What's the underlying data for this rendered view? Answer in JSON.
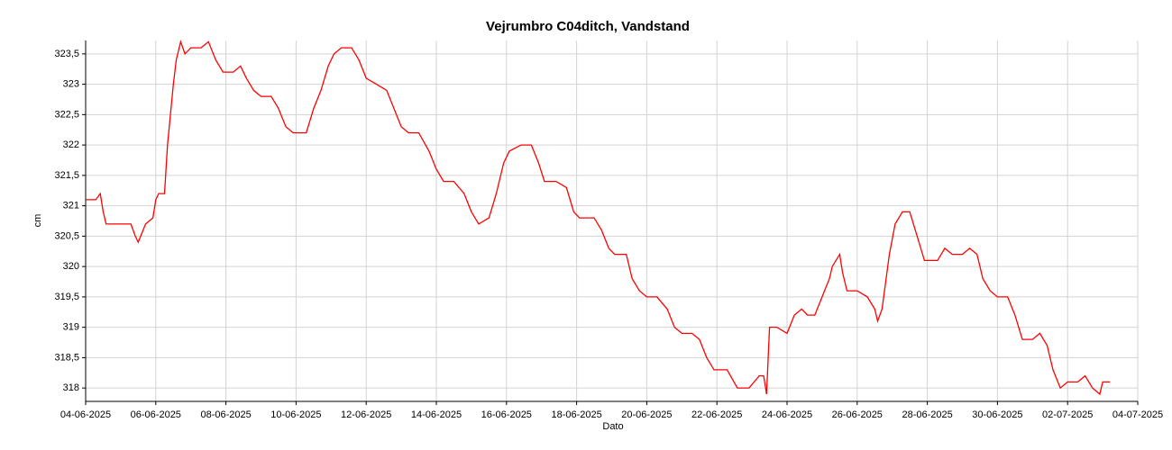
{
  "chart_data": {
    "type": "line",
    "title": "Vejrumbro C04ditch, Vandstand",
    "xlabel": "Dato",
    "ylabel": "cm",
    "color": "#ff0000",
    "grid": true,
    "x": [
      "2025-06-04T00:00",
      "2025-06-04T07:00",
      "2025-06-04T10:00",
      "2025-06-04T12:00",
      "2025-06-04T14:00",
      "2025-06-04T19:00",
      "2025-06-05T00:00",
      "2025-06-05T07:00",
      "2025-06-05T10:00",
      "2025-06-05T12:00",
      "2025-06-05T17:00",
      "2025-06-05T22:00",
      "2025-06-06T00:00",
      "2025-06-06T02:00",
      "2025-06-06T06:00",
      "2025-06-06T08:00",
      "2025-06-06T12:00",
      "2025-06-06T14:00",
      "2025-06-06T17:00",
      "2025-06-06T20:00",
      "2025-06-07T00:00",
      "2025-06-07T07:00",
      "2025-06-07T12:00",
      "2025-06-07T17:00",
      "2025-06-07T22:00",
      "2025-06-08T05:00",
      "2025-06-08T10:00",
      "2025-06-08T14:00",
      "2025-06-08T19:00",
      "2025-06-09T00:00",
      "2025-06-09T07:00",
      "2025-06-09T12:00",
      "2025-06-09T17:00",
      "2025-06-09T22:00",
      "2025-06-10T02:00",
      "2025-06-10T07:00",
      "2025-06-10T12:00",
      "2025-06-10T17:00",
      "2025-06-10T22:00",
      "2025-06-11T02:00",
      "2025-06-11T07:00",
      "2025-06-11T14:00",
      "2025-06-11T19:00",
      "2025-06-12T00:00",
      "2025-06-12T07:00",
      "2025-06-12T14:00",
      "2025-06-12T19:00",
      "2025-06-13T00:00",
      "2025-06-13T05:00",
      "2025-06-13T12:00",
      "2025-06-13T19:00",
      "2025-06-14T00:00",
      "2025-06-14T05:00",
      "2025-06-14T12:00",
      "2025-06-14T19:00",
      "2025-06-15T00:00",
      "2025-06-15T05:00",
      "2025-06-15T12:00",
      "2025-06-15T17:00",
      "2025-06-15T22:00",
      "2025-06-16T02:00",
      "2025-06-16T10:00",
      "2025-06-16T17:00",
      "2025-06-16T22:00",
      "2025-06-17T02:00",
      "2025-06-17T10:00",
      "2025-06-17T17:00",
      "2025-06-17T22:00",
      "2025-06-18T02:00",
      "2025-06-18T12:00",
      "2025-06-18T17:00",
      "2025-06-18T22:00",
      "2025-06-19T02:00",
      "2025-06-19T10:00",
      "2025-06-19T14:00",
      "2025-06-19T19:00",
      "2025-06-20T00:00",
      "2025-06-20T07:00",
      "2025-06-20T14:00",
      "2025-06-20T19:00",
      "2025-06-21T00:00",
      "2025-06-21T07:00",
      "2025-06-21T12:00",
      "2025-06-21T17:00",
      "2025-06-21T22:00",
      "2025-06-22T02:00",
      "2025-06-22T07:00",
      "2025-06-22T14:00",
      "2025-06-22T22:00",
      "2025-06-23T05:00",
      "2025-06-23T08:00",
      "2025-06-23T10:00",
      "2025-06-23T12:00",
      "2025-06-23T17:00",
      "2025-06-24T00:00",
      "2025-06-24T05:00",
      "2025-06-24T10:00",
      "2025-06-24T14:00",
      "2025-06-24T19:00",
      "2025-06-25T00:00",
      "2025-06-25T05:00",
      "2025-06-25T07:00",
      "2025-06-25T12:00",
      "2025-06-25T14:00",
      "2025-06-25T17:00",
      "2025-06-26T00:00",
      "2025-06-26T07:00",
      "2025-06-26T12:00",
      "2025-06-26T14:00",
      "2025-06-26T17:00",
      "2025-06-26T22:00",
      "2025-06-27T02:00",
      "2025-06-27T07:00",
      "2025-06-27T12:00",
      "2025-06-27T17:00",
      "2025-06-27T22:00",
      "2025-06-28T07:00",
      "2025-06-28T12:00",
      "2025-06-28T17:00",
      "2025-06-29T00:00",
      "2025-06-29T05:00",
      "2025-06-29T10:00",
      "2025-06-29T14:00",
      "2025-06-29T19:00",
      "2025-06-30T00:00",
      "2025-06-30T07:00",
      "2025-06-30T12:00",
      "2025-06-30T17:00",
      "2025-07-01T00:00",
      "2025-07-01T05:00",
      "2025-07-01T10:00",
      "2025-07-01T14:00",
      "2025-07-01T19:00",
      "2025-07-02T00:00",
      "2025-07-02T07:00",
      "2025-07-02T12:00",
      "2025-07-02T17:00",
      "2025-07-02T22:00",
      "2025-07-03T00:00",
      "2025-07-03T05:00"
    ],
    "values": [
      321.1,
      321.1,
      321.2,
      320.9,
      320.7,
      320.7,
      320.7,
      320.7,
      320.5,
      320.4,
      320.7,
      320.8,
      321.1,
      321.2,
      321.2,
      322.0,
      323.0,
      323.4,
      323.7,
      323.5,
      323.6,
      323.6,
      323.7,
      323.4,
      323.2,
      323.2,
      323.3,
      323.1,
      322.9,
      322.8,
      322.8,
      322.6,
      322.3,
      322.2,
      322.2,
      322.2,
      322.6,
      322.9,
      323.3,
      323.5,
      323.6,
      323.6,
      323.4,
      323.1,
      323.0,
      322.9,
      322.6,
      322.3,
      322.2,
      322.2,
      321.9,
      321.6,
      321.4,
      321.4,
      321.2,
      320.9,
      320.7,
      320.8,
      321.2,
      321.7,
      321.9,
      322.0,
      322.0,
      321.7,
      321.4,
      321.4,
      321.3,
      320.9,
      320.8,
      320.8,
      320.6,
      320.3,
      320.2,
      320.2,
      319.8,
      319.6,
      319.5,
      319.5,
      319.3,
      319.0,
      318.9,
      318.9,
      318.8,
      318.5,
      318.3,
      318.3,
      318.3,
      318.0,
      318.0,
      318.2,
      318.2,
      317.9,
      319.0,
      319.0,
      318.9,
      319.2,
      319.3,
      319.2,
      319.2,
      319.5,
      319.8,
      320.0,
      320.2,
      319.9,
      319.6,
      319.6,
      319.5,
      319.3,
      319.1,
      319.3,
      320.2,
      320.7,
      320.9,
      320.9,
      320.5,
      320.1,
      320.1,
      320.3,
      320.2,
      320.2,
      320.3,
      320.2,
      319.8,
      319.6,
      319.5,
      319.5,
      319.2,
      318.8,
      318.8,
      318.9,
      318.7,
      318.3,
      318.0,
      318.1,
      318.1,
      318.2,
      318.0,
      317.9,
      318.1,
      318.1
    ],
    "xlim": [
      "2025-06-04T00:00",
      "2025-07-04T00:00"
    ],
    "xticks": [
      {
        "value": "2025-06-04T00:00",
        "label": "04-06-2025"
      },
      {
        "value": "2025-06-06T00:00",
        "label": "06-06-2025"
      },
      {
        "value": "2025-06-08T00:00",
        "label": "08-06-2025"
      },
      {
        "value": "2025-06-10T00:00",
        "label": "10-06-2025"
      },
      {
        "value": "2025-06-12T00:00",
        "label": "12-06-2025"
      },
      {
        "value": "2025-06-14T00:00",
        "label": "14-06-2025"
      },
      {
        "value": "2025-06-16T00:00",
        "label": "16-06-2025"
      },
      {
        "value": "2025-06-18T00:00",
        "label": "18-06-2025"
      },
      {
        "value": "2025-06-20T00:00",
        "label": "20-06-2025"
      },
      {
        "value": "2025-06-22T00:00",
        "label": "22-06-2025"
      },
      {
        "value": "2025-06-24T00:00",
        "label": "24-06-2025"
      },
      {
        "value": "2025-06-26T00:00",
        "label": "26-06-2025"
      },
      {
        "value": "2025-06-28T00:00",
        "label": "28-06-2025"
      },
      {
        "value": "2025-06-30T00:00",
        "label": "30-06-2025"
      },
      {
        "value": "2025-07-02T00:00",
        "label": "02-07-2025"
      },
      {
        "value": "2025-07-04T00:00",
        "label": "04-07-2025"
      }
    ],
    "ylim": [
      317.78,
      323.72
    ],
    "yticks": [
      318,
      {
        "value": 318.5,
        "label": "318,5"
      },
      319,
      {
        "value": 319.5,
        "label": "319,5"
      },
      320,
      {
        "value": 320.5,
        "label": "320,5"
      },
      321,
      {
        "value": 321.5,
        "label": "321,5"
      },
      322,
      {
        "value": 322.5,
        "label": "322,5"
      },
      323,
      {
        "value": 323.5,
        "label": "323,5"
      }
    ]
  }
}
